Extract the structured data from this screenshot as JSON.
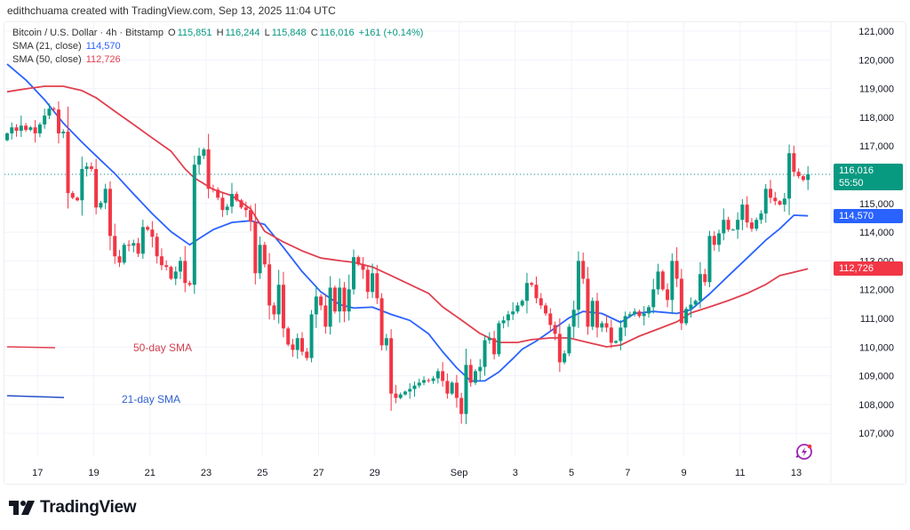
{
  "header": {
    "credit": "edithchuama created with TradingView.com, Sep 13, 2025 11:04 UTC"
  },
  "legend": {
    "symbol": "Bitcoin / U.S. Dollar · 4h · Bitstamp",
    "o_label": "O",
    "o": "115,851",
    "h_label": "H",
    "h": "116,244",
    "l_label": "L",
    "l": "115,848",
    "c_label": "C",
    "c": "116,016",
    "change": "+161 (+0.14%)",
    "sma21_label": "SMA (21, close)",
    "sma21": "114,570",
    "sma50_label": "SMA (50, close)",
    "sma50": "112,726"
  },
  "badges": {
    "price": "116,016",
    "countdown": "55:50",
    "sma21": "114,570",
    "sma50": "112,726"
  },
  "annotations": {
    "sma50": "50-day SMA",
    "sma21": "21-day SMA"
  },
  "logo": {
    "text": "TradingView"
  },
  "colors": {
    "up": "#089981",
    "down": "#f23645",
    "sma21": "#2962ff",
    "sma50": "#e0404f",
    "grid": "#f0f3fa"
  },
  "chart_data": {
    "type": "candlestick",
    "title": "Bitcoin / U.S. Dollar · 4h · Bitstamp",
    "interval": "4h",
    "ylim": [
      106200,
      121400
    ],
    "y_ticks": [
      107000,
      108000,
      109000,
      110000,
      111000,
      112000,
      113000,
      114000,
      115000,
      116000,
      117000,
      118000,
      119000,
      120000,
      121000
    ],
    "y_tick_labels": [
      "107,000",
      "108,000",
      "109,000",
      "110,000",
      "111,000",
      "112,000",
      "113,000",
      "114,000",
      "115,000",
      "116,000",
      "117,000",
      "118,000",
      "119,000",
      "120,000",
      "121,000"
    ],
    "x_ticks": [
      {
        "label": "17",
        "index": 6.5
      },
      {
        "label": "19",
        "index": 18.5
      },
      {
        "label": "21",
        "index": 30.5
      },
      {
        "label": "23",
        "index": 42.5
      },
      {
        "label": "25",
        "index": 54.5
      },
      {
        "label": "27",
        "index": 66.5
      },
      {
        "label": "29",
        "index": 78.5
      },
      {
        "label": "Sep",
        "index": 96.5
      },
      {
        "label": "3",
        "index": 108.5
      },
      {
        "label": "5",
        "index": 120.5
      },
      {
        "label": "7",
        "index": 132.5
      },
      {
        "label": "9",
        "index": 144.5
      },
      {
        "label": "11",
        "index": 156.5
      },
      {
        "label": "13",
        "index": 168.5
      }
    ],
    "first_open": 117200,
    "closes": [
      117440,
      117650,
      117530,
      117710,
      117560,
      117650,
      117440,
      117750,
      118060,
      118300,
      118270,
      117440,
      117500,
      115360,
      115200,
      115110,
      116200,
      116290,
      116200,
      114860,
      115020,
      115510,
      113870,
      113160,
      112940,
      113560,
      113530,
      113620,
      113250,
      114180,
      114090,
      113840,
      113160,
      112850,
      112790,
      112380,
      112630,
      113000,
      112230,
      112170,
      116350,
      116660,
      116880,
      115510,
      115480,
      115200,
      114770,
      114890,
      115330,
      115110,
      114860,
      114770,
      114370,
      112570,
      113560,
      112880,
      111450,
      111140,
      112170,
      110650,
      110090,
      109900,
      110310,
      109840,
      109620,
      111140,
      111760,
      111450,
      110710,
      112070,
      111240,
      112070,
      111240,
      112010,
      113130,
      112880,
      112690,
      111920,
      112570,
      111700,
      110060,
      110310,
      108380,
      108230,
      108350,
      108450,
      108540,
      108660,
      108760,
      108850,
      108820,
      108910,
      109160,
      108820,
      108380,
      108760,
      108230,
      107670,
      109380,
      108760,
      109160,
      109310,
      110240,
      110310,
      109750,
      110830,
      110930,
      111140,
      111240,
      111450,
      111610,
      112230,
      112170,
      111700,
      111450,
      111170,
      110770,
      110460,
      109470,
      109780,
      110710,
      111300,
      113000,
      112380,
      110710,
      111610,
      110680,
      110830,
      110680,
      110150,
      110210,
      110680,
      111080,
      111140,
      111240,
      111080,
      111170,
      111390,
      112010,
      112630,
      112010,
      111640,
      113000,
      112380,
      110830,
      111330,
      111480,
      111610,
      112540,
      112260,
      113870,
      113560,
      113960,
      114430,
      114090,
      114090,
      114430,
      114960,
      114340,
      114120,
      114430,
      114650,
      115510,
      115200,
      115080,
      114960,
      115170,
      116750,
      116100,
      115950,
      115820,
      116016
    ],
    "series": [
      {
        "name": "SMA (21, close)",
        "points": [
          [
            0,
            119850
          ],
          [
            4,
            119300
          ],
          [
            8,
            118610
          ],
          [
            12,
            117800
          ],
          [
            16,
            117130
          ],
          [
            19,
            116660
          ],
          [
            23,
            116040
          ],
          [
            27,
            115330
          ],
          [
            31,
            114640
          ],
          [
            35,
            114020
          ],
          [
            39,
            113560
          ],
          [
            41,
            113780
          ],
          [
            44,
            114090
          ],
          [
            48,
            114340
          ],
          [
            52,
            114400
          ],
          [
            55,
            114270
          ],
          [
            59,
            113470
          ],
          [
            63,
            112630
          ],
          [
            67,
            111920
          ],
          [
            71,
            111480
          ],
          [
            74,
            111360
          ],
          [
            78,
            111390
          ],
          [
            82,
            111140
          ],
          [
            86,
            110930
          ],
          [
            90,
            110460
          ],
          [
            93,
            109840
          ],
          [
            96,
            109280
          ],
          [
            99,
            108820
          ],
          [
            102,
            108820
          ],
          [
            105,
            109130
          ],
          [
            108,
            109600
          ],
          [
            110,
            109930
          ],
          [
            113,
            110210
          ],
          [
            116,
            110550
          ],
          [
            120,
            111020
          ],
          [
            123,
            111240
          ],
          [
            127,
            111170
          ],
          [
            131,
            110860
          ],
          [
            134,
            111170
          ],
          [
            138,
            111240
          ],
          [
            143,
            111170
          ],
          [
            146,
            111300
          ],
          [
            150,
            111850
          ],
          [
            154,
            112480
          ],
          [
            158,
            113100
          ],
          [
            162,
            113720
          ],
          [
            165,
            114120
          ],
          [
            168,
            114590
          ],
          [
            171,
            114570
          ]
        ]
      },
      {
        "name": "SMA (50, close)",
        "points": [
          [
            0,
            118890
          ],
          [
            4,
            118990
          ],
          [
            8,
            119080
          ],
          [
            12,
            119080
          ],
          [
            16,
            118930
          ],
          [
            19,
            118680
          ],
          [
            23,
            118210
          ],
          [
            27,
            117750
          ],
          [
            31,
            117280
          ],
          [
            35,
            116820
          ],
          [
            38,
            116200
          ],
          [
            40,
            115890
          ],
          [
            44,
            115490
          ],
          [
            48,
            115270
          ],
          [
            52,
            114810
          ],
          [
            55,
            114030
          ],
          [
            59,
            113660
          ],
          [
            63,
            113350
          ],
          [
            67,
            113100
          ],
          [
            71,
            113010
          ],
          [
            74,
            112950
          ],
          [
            78,
            112790
          ],
          [
            82,
            112490
          ],
          [
            86,
            112180
          ],
          [
            90,
            111870
          ],
          [
            93,
            111400
          ],
          [
            97,
            110940
          ],
          [
            101,
            110470
          ],
          [
            105,
            110160
          ],
          [
            109,
            110160
          ],
          [
            112,
            110260
          ],
          [
            116,
            110320
          ],
          [
            120,
            110320
          ],
          [
            124,
            110160
          ],
          [
            128,
            110010
          ],
          [
            131,
            110070
          ],
          [
            135,
            110380
          ],
          [
            139,
            110630
          ],
          [
            143,
            110880
          ],
          [
            146,
            111190
          ],
          [
            150,
            111400
          ],
          [
            154,
            111620
          ],
          [
            158,
            111870
          ],
          [
            162,
            112180
          ],
          [
            165,
            112490
          ],
          [
            171,
            112726
          ]
        ]
      }
    ],
    "last_price": 116016
  }
}
